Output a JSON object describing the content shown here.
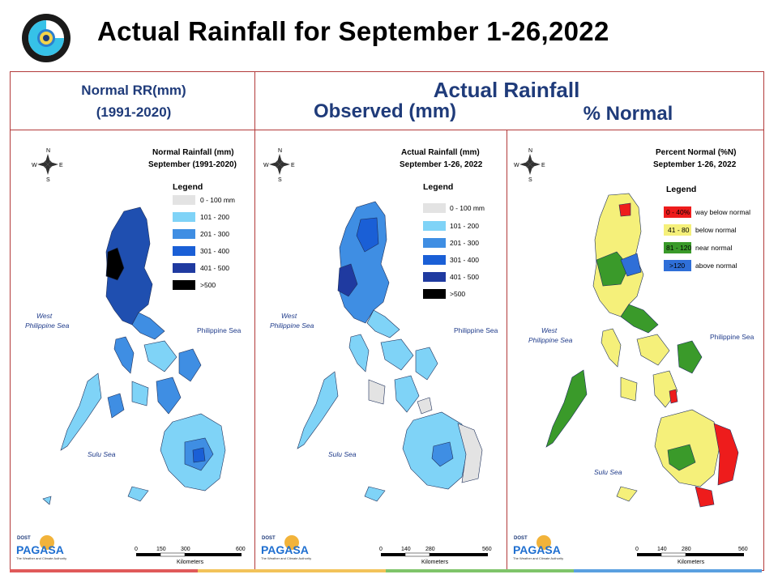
{
  "slide": {
    "title": "Actual Rainfall for September 1-26,2022",
    "logo_icon": "pagasa-seal-icon"
  },
  "headers": {
    "normal_line1": "Normal RR(mm)",
    "normal_line2": "(1991-2020)",
    "actual": "Actual Rainfall",
    "observed": "Observed (mm)",
    "percent": "% Normal"
  },
  "panels": [
    {
      "map_title_line1": "Normal Rainfall (mm)",
      "map_title_line2": "September (1991-2020)",
      "legend_title": "Legend",
      "legend": [
        {
          "label": "0 - 100 mm",
          "color": "#e3e3e3"
        },
        {
          "label": "101 - 200",
          "color": "#7fd3f7"
        },
        {
          "label": "201 - 300",
          "color": "#3f8ee3"
        },
        {
          "label": "301 - 400",
          "color": "#1a5fd6"
        },
        {
          "label": "401 - 500",
          "color": "#1f3aa0"
        },
        {
          "label": ">500",
          "color": "#000000"
        }
      ],
      "seas": {
        "west": "West",
        "west2": "Philippine Sea",
        "east": "Philippine Sea",
        "sulu": "Sulu Sea"
      },
      "scale_labels": [
        "0",
        "150",
        "300",
        "600"
      ],
      "scale_unit": "Kilometers"
    },
    {
      "map_title_line1": "Actual Rainfall (mm)",
      "map_title_line2": "September 1-26, 2022",
      "legend_title": "Legend",
      "legend": [
        {
          "label": "0 - 100 mm",
          "color": "#e3e3e3"
        },
        {
          "label": "101 - 200",
          "color": "#7fd3f7"
        },
        {
          "label": "201 - 300",
          "color": "#3f8ee3"
        },
        {
          "label": "301 - 400",
          "color": "#1a5fd6"
        },
        {
          "label": "401 - 500",
          "color": "#1f3aa0"
        },
        {
          "label": ">500",
          "color": "#000000"
        }
      ],
      "seas": {
        "west": "West",
        "west2": "Philippine Sea",
        "east": "Philippine Sea",
        "sulu": "Sulu Sea"
      },
      "scale_labels": [
        "0",
        "140",
        "280",
        "560"
      ],
      "scale_unit": "Kilometers"
    },
    {
      "map_title_line1": "Percent Normal (%N)",
      "map_title_line2": "September 1-26, 2022",
      "legend_title": "Legend",
      "legend": [
        {
          "label": "way below normal",
          "swatch": "0 - 40%",
          "color": "#ee1c1c"
        },
        {
          "label": "below normal",
          "swatch": "41 - 80",
          "color": "#f5f07a"
        },
        {
          "label": "near normal",
          "swatch": "81 - 120",
          "color": "#3a9a2a"
        },
        {
          "label": "above normal",
          "swatch": ">120",
          "color": "#2f6fd8"
        }
      ],
      "seas": {
        "west": "West",
        "west2": "Philippine Sea",
        "east": "Philippine Sea",
        "sulu": "Sulu Sea"
      },
      "scale_labels": [
        "0",
        "140",
        "280",
        "560"
      ],
      "scale_unit": "Kilometers"
    }
  ],
  "branding": {
    "dost": "DOST",
    "pagasa": "PAGASA",
    "tagline": "The Weather and Climate Authority"
  },
  "compass": {
    "n": "N",
    "s": "S",
    "e": "E",
    "w": "W"
  },
  "colors": {
    "header_text": "#1f3b7a",
    "frame": "#b23a3a",
    "strip": [
      "#e05a5a",
      "#f2c35a",
      "#7fc46a",
      "#5aa0e0"
    ]
  }
}
